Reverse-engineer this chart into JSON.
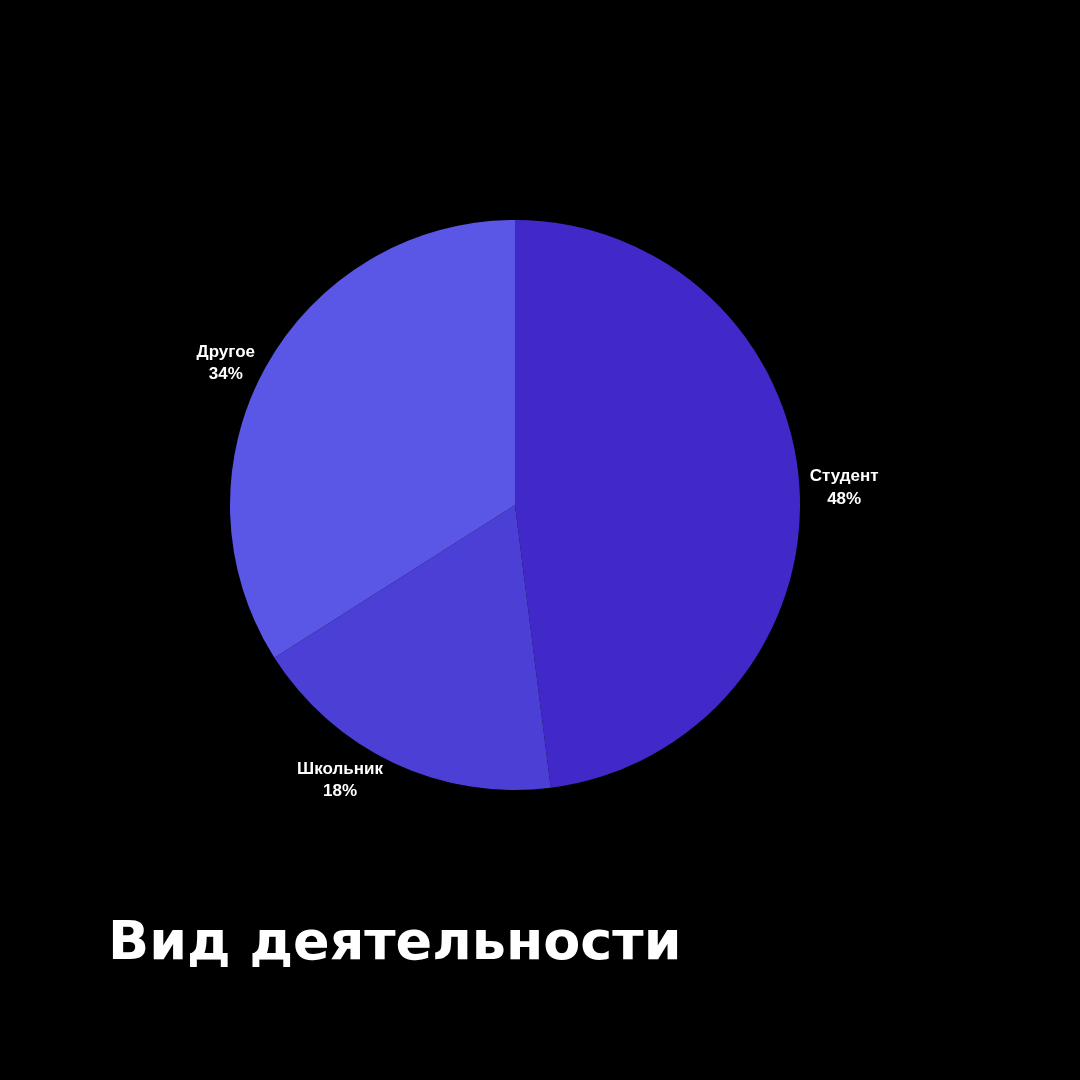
{
  "chart_data": {
    "type": "pie",
    "title": "Вид деятельности",
    "categories": [
      "Студент",
      "Школьник",
      "Другое"
    ],
    "values": [
      48,
      18,
      34
    ],
    "value_labels": [
      "48%",
      "18%",
      "34%"
    ],
    "colors": [
      "#4129c9",
      "#4b3fd6",
      "#5a57e6"
    ],
    "legend": false
  }
}
